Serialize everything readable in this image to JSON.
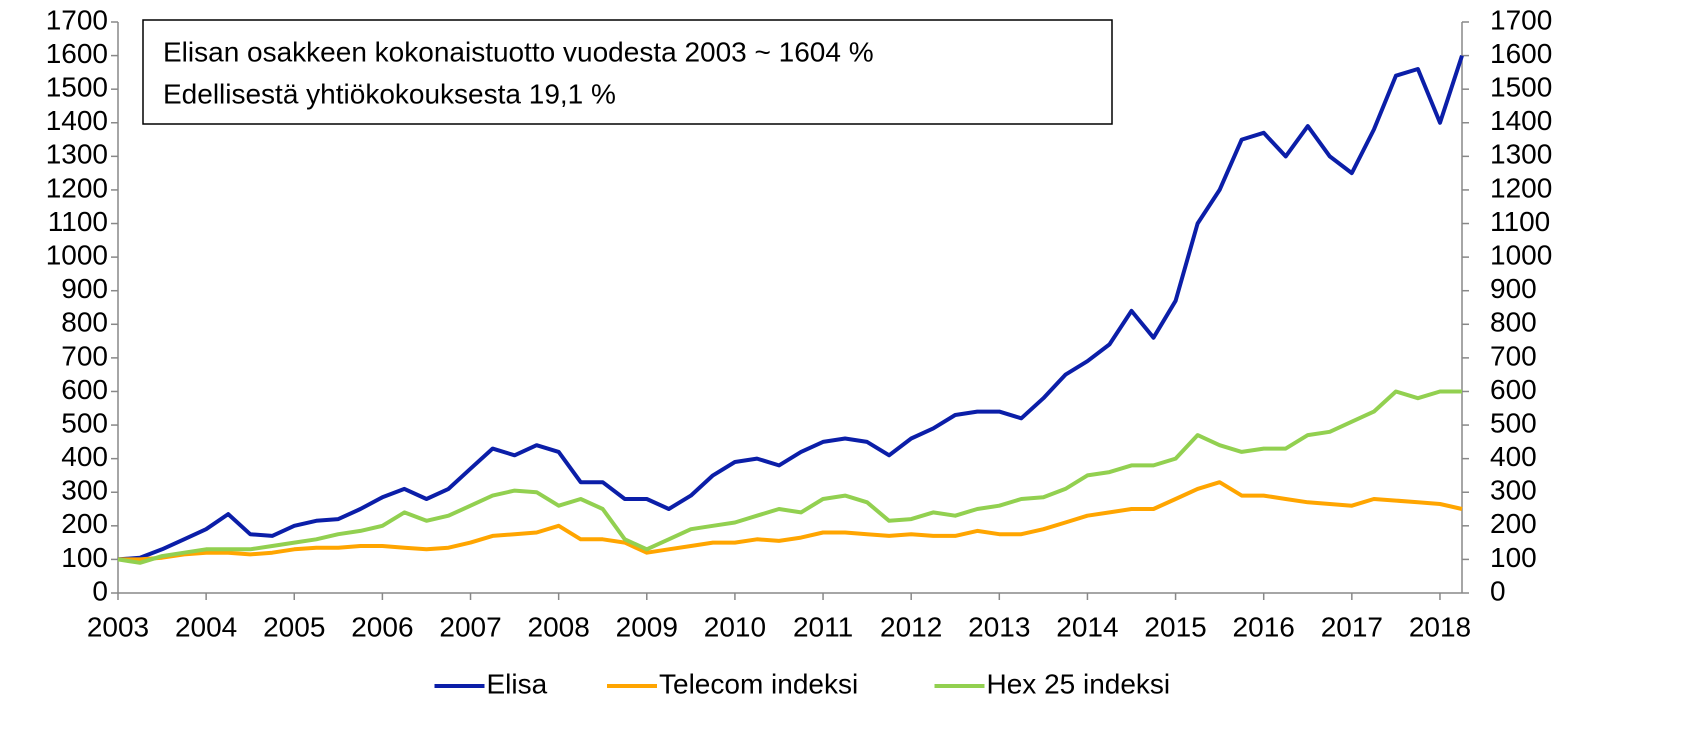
{
  "chart_data": {
    "type": "line",
    "annotation": [
      "Elisan osakkeen kokonaistuotto vuodesta 2003  ~ 1604 %",
      "Edellisestä yhtiökokouksesta 19,1 %"
    ],
    "x": [
      2003,
      2003.25,
      2003.5,
      2003.75,
      2004,
      2004.25,
      2004.5,
      2004.75,
      2005,
      2005.25,
      2005.5,
      2005.75,
      2006,
      2006.25,
      2006.5,
      2006.75,
      2007,
      2007.25,
      2007.5,
      2007.75,
      2008,
      2008.25,
      2008.5,
      2008.75,
      2009,
      2009.25,
      2009.5,
      2009.75,
      2010,
      2010.25,
      2010.5,
      2010.75,
      2011,
      2011.25,
      2011.5,
      2011.75,
      2012,
      2012.25,
      2012.5,
      2012.75,
      2013,
      2013.25,
      2013.5,
      2013.75,
      2014,
      2014.25,
      2014.5,
      2014.75,
      2015,
      2015.25,
      2015.5,
      2015.75,
      2016,
      2016.25,
      2016.5,
      2016.75,
      2017,
      2017.25,
      2017.5,
      2017.75,
      2018,
      2018.25
    ],
    "series": [
      {
        "name": "Elisa",
        "color": "#0b1ea8",
        "values": [
          100,
          105,
          130,
          160,
          190,
          235,
          175,
          170,
          200,
          215,
          220,
          250,
          285,
          310,
          280,
          310,
          370,
          430,
          410,
          440,
          420,
          330,
          330,
          280,
          280,
          250,
          290,
          350,
          390,
          400,
          380,
          420,
          450,
          460,
          450,
          410,
          460,
          490,
          530,
          540,
          540,
          520,
          580,
          650,
          690,
          740,
          840,
          760,
          870,
          1100,
          1200,
          1350,
          1370,
          1300,
          1390,
          1300,
          1250,
          1380,
          1540,
          1560,
          1400,
          1600
        ]
      },
      {
        "name": "Telecom indeksi",
        "color": "#ffa500",
        "values": [
          100,
          100,
          105,
          115,
          120,
          120,
          115,
          120,
          130,
          135,
          135,
          140,
          140,
          135,
          130,
          135,
          150,
          170,
          175,
          180,
          200,
          160,
          160,
          150,
          120,
          130,
          140,
          150,
          150,
          160,
          155,
          165,
          180,
          180,
          175,
          170,
          175,
          170,
          170,
          185,
          175,
          175,
          190,
          210,
          230,
          240,
          250,
          250,
          280,
          310,
          330,
          290,
          290,
          280,
          270,
          265,
          260,
          280,
          275,
          270,
          265,
          250
        ]
      },
      {
        "name": "Hex 25 indeksi",
        "color": "#92d050",
        "values": [
          100,
          90,
          110,
          120,
          130,
          130,
          130,
          140,
          150,
          160,
          175,
          185,
          200,
          240,
          215,
          230,
          260,
          290,
          305,
          300,
          260,
          280,
          250,
          160,
          130,
          160,
          190,
          200,
          210,
          230,
          250,
          240,
          280,
          290,
          270,
          215,
          220,
          240,
          230,
          250,
          260,
          280,
          285,
          310,
          350,
          360,
          380,
          380,
          400,
          470,
          440,
          420,
          430,
          430,
          470,
          480,
          510,
          540,
          600,
          580,
          600,
          600
        ]
      }
    ],
    "xlim": [
      2003,
      2018.25
    ],
    "xticks": [
      2003,
      2004,
      2005,
      2006,
      2007,
      2008,
      2009,
      2010,
      2011,
      2012,
      2013,
      2014,
      2015,
      2016,
      2017,
      2018
    ],
    "ylim": [
      0,
      1700
    ],
    "yticks": [
      0,
      100,
      200,
      300,
      400,
      500,
      600,
      700,
      800,
      900,
      1000,
      1100,
      1200,
      1300,
      1400,
      1500,
      1600,
      1700
    ],
    "y2lim": [
      0,
      1700
    ],
    "y2ticks": [
      0,
      100,
      200,
      300,
      400,
      500,
      600,
      700,
      800,
      900,
      1000,
      1100,
      1200,
      1300,
      1400,
      1500,
      1600,
      1700
    ],
    "legend": "bottom"
  }
}
